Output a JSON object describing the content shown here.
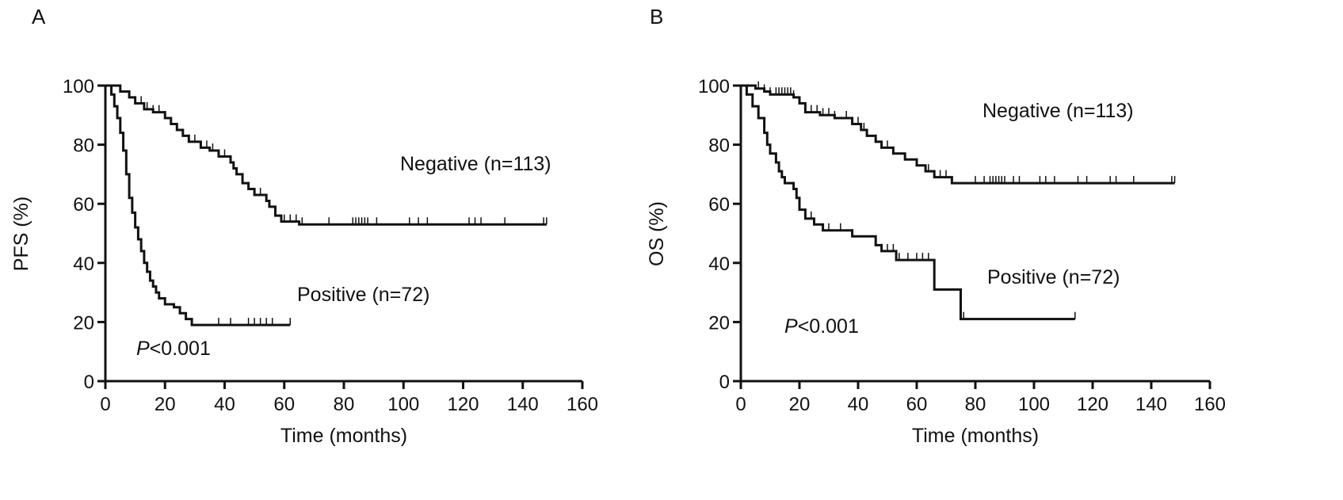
{
  "chart_data": [
    {
      "panel_label": "A",
      "type": "line",
      "subtype": "kaplan-meier",
      "xlabel": "Time (months)",
      "ylabel": "PFS (%)",
      "xlim": [
        0,
        160
      ],
      "ylim": [
        0,
        100
      ],
      "xticks": [
        "0",
        "20",
        "40",
        "60",
        "80",
        "100",
        "120",
        "140",
        "160"
      ],
      "yticks": [
        "0",
        "20",
        "40",
        "60",
        "80",
        "100"
      ],
      "grid": false,
      "pvalue_italic": "P",
      "pvalue_rest": "<0.001",
      "series": [
        {
          "name": "Negative (n=113)",
          "steps": [
            [
              0,
              100
            ],
            [
              5,
              98
            ],
            [
              8,
              96
            ],
            [
              10,
              94
            ],
            [
              13,
              92
            ],
            [
              16,
              91
            ],
            [
              20,
              89
            ],
            [
              22,
              87
            ],
            [
              24,
              85
            ],
            [
              26,
              83
            ],
            [
              28,
              81
            ],
            [
              32,
              79
            ],
            [
              35,
              78
            ],
            [
              38,
              76
            ],
            [
              42,
              74
            ],
            [
              43,
              72
            ],
            [
              44,
              70
            ],
            [
              46,
              67
            ],
            [
              48,
              65
            ],
            [
              50,
              63
            ],
            [
              54,
              61
            ],
            [
              55,
              59
            ],
            [
              57,
              56
            ],
            [
              59,
              54
            ],
            [
              65,
              53
            ]
          ],
          "end": 148,
          "censored": [
            10,
            12,
            14,
            16,
            18,
            20,
            22,
            26,
            28,
            30,
            34,
            36,
            40,
            48,
            52,
            60,
            62,
            64,
            66,
            75,
            83,
            84,
            85,
            86,
            87,
            88,
            91,
            102,
            105,
            108,
            122,
            124,
            126,
            134,
            147,
            148
          ]
        },
        {
          "name": "Positive (n=72)",
          "steps": [
            [
              0,
              100
            ],
            [
              2,
              97
            ],
            [
              3,
              93
            ],
            [
              4,
              89
            ],
            [
              5,
              84
            ],
            [
              6,
              78
            ],
            [
              7,
              70
            ],
            [
              8,
              62
            ],
            [
              9,
              57
            ],
            [
              10,
              52
            ],
            [
              11,
              48
            ],
            [
              12,
              44
            ],
            [
              13,
              40
            ],
            [
              14,
              37
            ],
            [
              15,
              34
            ],
            [
              16,
              32
            ],
            [
              17,
              30
            ],
            [
              18,
              28
            ],
            [
              20,
              26
            ],
            [
              23,
              25
            ],
            [
              25,
              23
            ],
            [
              27,
              21
            ],
            [
              29,
              19
            ]
          ],
          "end": 62,
          "censored": [
            38,
            42,
            48,
            50,
            52,
            54,
            56,
            62
          ]
        }
      ]
    },
    {
      "panel_label": "B",
      "type": "line",
      "subtype": "kaplan-meier",
      "xlabel": "Time (months)",
      "ylabel": "OS (%)",
      "xlim": [
        0,
        160
      ],
      "ylim": [
        0,
        100
      ],
      "xticks": [
        "0",
        "20",
        "40",
        "60",
        "80",
        "100",
        "120",
        "140",
        "160"
      ],
      "yticks": [
        "0",
        "20",
        "40",
        "60",
        "80",
        "100"
      ],
      "grid": false,
      "pvalue_italic": "P",
      "pvalue_rest": "<0.001",
      "series": [
        {
          "name": "Negative (n=113)",
          "steps": [
            [
              0,
              100
            ],
            [
              5,
              99
            ],
            [
              8,
              98
            ],
            [
              10,
              97
            ],
            [
              18,
              96
            ],
            [
              20,
              94
            ],
            [
              22,
              91
            ],
            [
              27,
              90
            ],
            [
              32,
              89
            ],
            [
              38,
              87
            ],
            [
              41,
              85
            ],
            [
              43,
              83
            ],
            [
              46,
              81
            ],
            [
              48,
              79
            ],
            [
              52,
              77
            ],
            [
              56,
              75
            ],
            [
              60,
              73
            ],
            [
              63,
              71
            ],
            [
              66,
              69
            ],
            [
              72,
              67
            ]
          ],
          "end": 148,
          "censored": [
            6,
            8,
            10,
            12,
            13,
            14,
            15,
            16,
            17,
            18,
            22,
            24,
            26,
            28,
            30,
            32,
            36,
            38,
            40,
            42,
            46,
            50,
            60,
            64,
            66,
            68,
            70,
            80,
            83,
            85,
            86,
            87,
            88,
            89,
            90,
            93,
            95,
            102,
            104,
            107,
            115,
            118,
            126,
            128,
            134,
            147,
            148
          ]
        },
        {
          "name": "Positive (n=72)",
          "steps": [
            [
              0,
              100
            ],
            [
              2,
              97
            ],
            [
              4,
              93
            ],
            [
              6,
              89
            ],
            [
              8,
              84
            ],
            [
              9,
              80
            ],
            [
              10,
              77
            ],
            [
              12,
              74
            ],
            [
              13,
              71
            ],
            [
              14,
              69
            ],
            [
              15,
              67
            ],
            [
              18,
              65
            ],
            [
              19,
              62
            ],
            [
              20,
              58
            ],
            [
              22,
              55
            ],
            [
              25,
              53
            ],
            [
              28,
              51
            ],
            [
              38,
              49
            ],
            [
              46,
              46
            ],
            [
              48,
              44
            ],
            [
              53,
              41
            ],
            [
              66,
              31
            ],
            [
              75,
              21
            ]
          ],
          "end": 114,
          "censored": [
            18,
            24,
            30,
            34,
            38,
            46,
            48,
            50,
            52,
            54,
            57,
            60,
            62,
            64,
            76,
            114
          ]
        }
      ]
    }
  ]
}
